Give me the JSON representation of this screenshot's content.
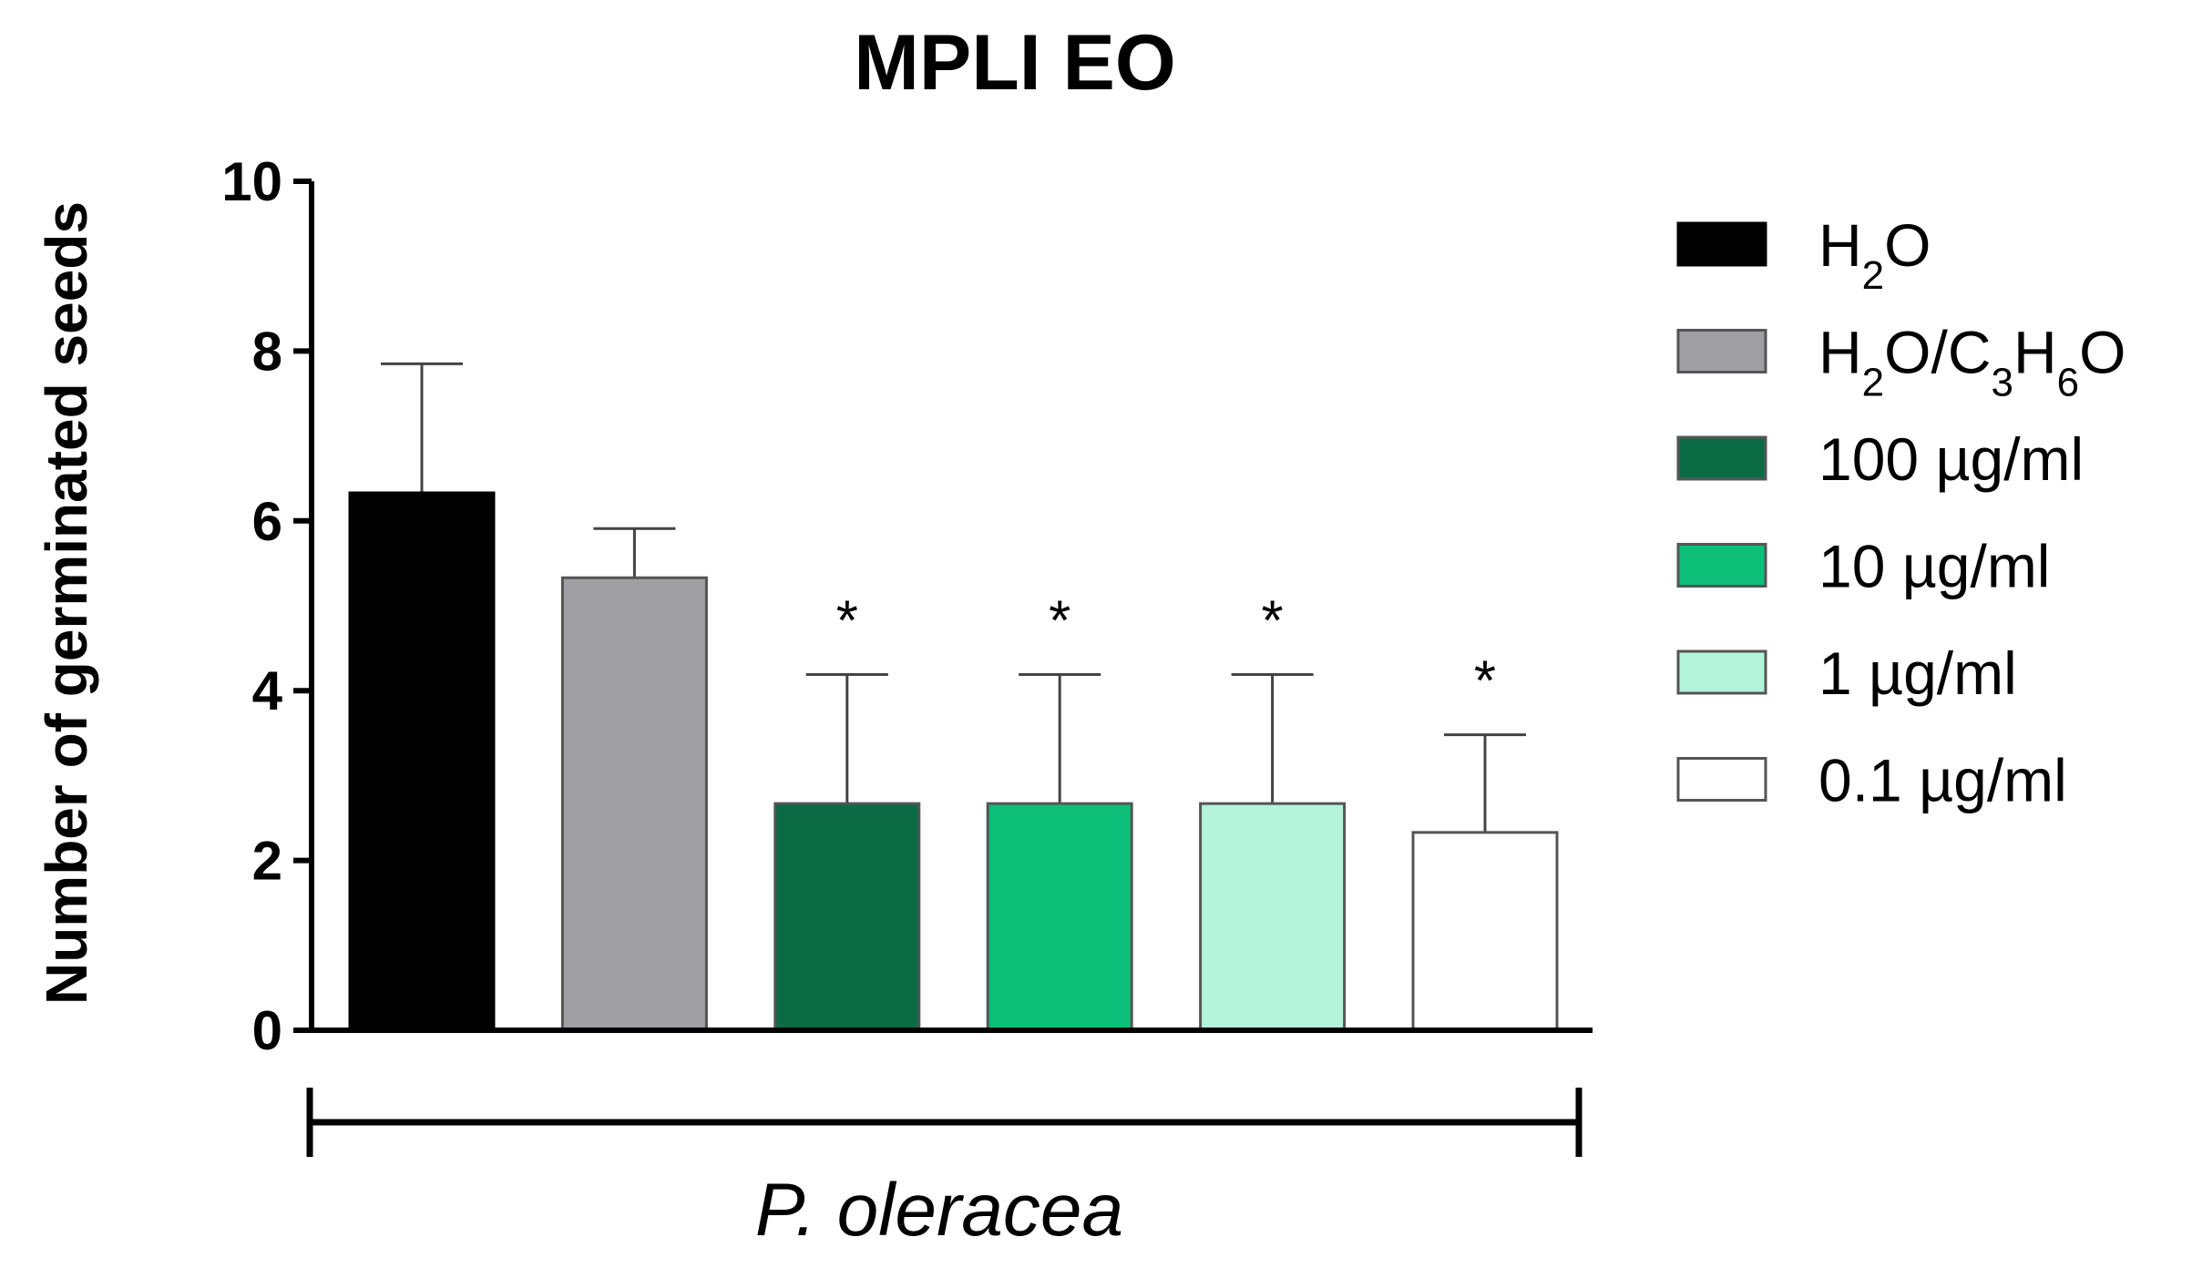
{
  "chart_data": {
    "type": "bar",
    "title": "MPLI EO",
    "xlabel": "",
    "ylabel": "Number of germinated seeds",
    "group_label": "P. oleracea",
    "ylim": [
      0,
      10
    ],
    "yticks": [
      "0",
      "2",
      "4",
      "6",
      "8",
      "10"
    ],
    "categories": [
      "H2O",
      "H2O/C3H6O",
      "100 µg/ml",
      "10 µg/ml",
      "1 µg/ml",
      "0.1 µg/ml"
    ],
    "values": [
      6.33,
      5.33,
      2.67,
      2.67,
      2.67,
      2.33
    ],
    "errors": [
      1.52,
      0.58,
      1.52,
      1.52,
      1.52,
      1.15
    ],
    "significance": [
      "",
      "",
      "*",
      "*",
      "*",
      "*"
    ],
    "colors": [
      "#000000",
      "#a0a0a4",
      "#0b6b45",
      "#0dbf78",
      "#b3f3dc",
      "#ffffff"
    ],
    "legend": [
      {
        "label": "H2O",
        "parts": [
          [
            "H",
            ""
          ],
          [
            "2",
            "sub"
          ],
          [
            "O",
            ""
          ]
        ]
      },
      {
        "label": "H2O/C3H6O",
        "parts": [
          [
            "H",
            ""
          ],
          [
            "2",
            "sub"
          ],
          [
            "O/C",
            ""
          ],
          [
            "3",
            "sub"
          ],
          [
            "H",
            ""
          ],
          [
            "6",
            "sub"
          ],
          [
            "O",
            ""
          ]
        ]
      },
      {
        "label": "100 µg/ml",
        "parts": [
          [
            "100 µg/ml",
            ""
          ]
        ]
      },
      {
        "label": "10 µg/ml",
        "parts": [
          [
            "10 µg/ml",
            ""
          ]
        ]
      },
      {
        "label": "1 µg/ml",
        "parts": [
          [
            "1 µg/ml",
            ""
          ]
        ]
      },
      {
        "label": "0.1 µg/ml",
        "parts": [
          [
            "0.1 µg/ml",
            ""
          ]
        ]
      }
    ],
    "legend_position": "right",
    "grid": false
  }
}
